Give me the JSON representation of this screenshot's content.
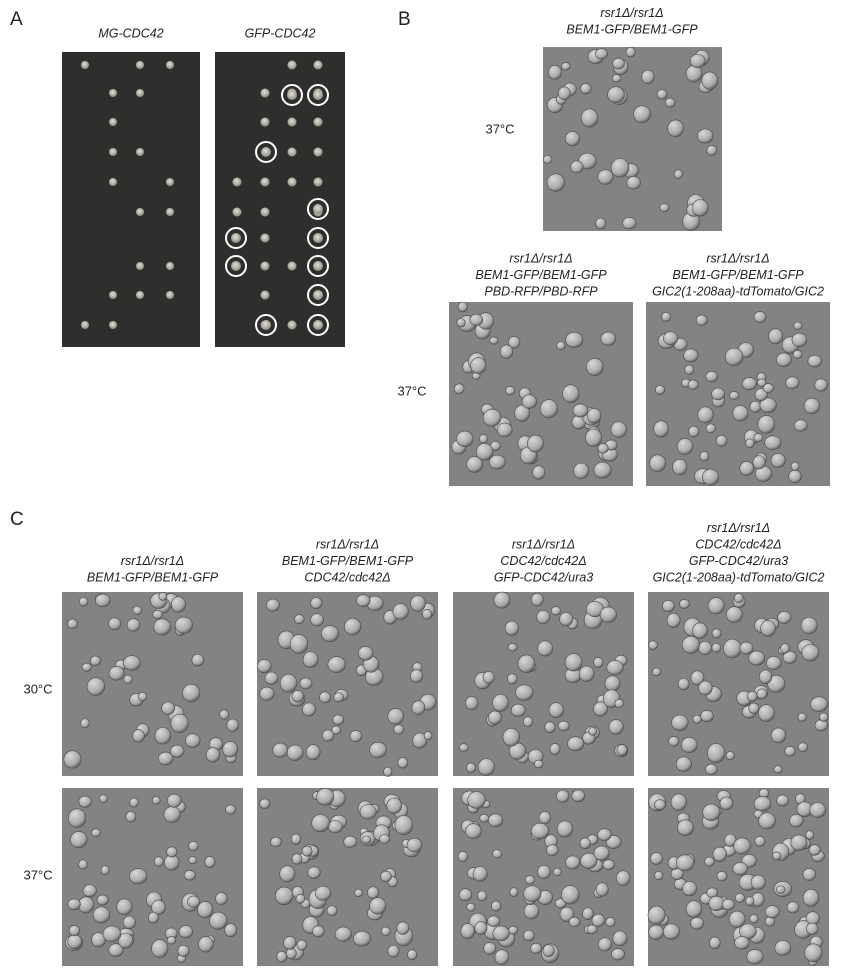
{
  "panels": [
    {
      "label": "A",
      "columns": [
        "MG-CDC42",
        "GFP-CDC42"
      ]
    },
    {
      "label": "B",
      "top": {
        "genotype": [
          "rsr1Δ/rsr1Δ",
          "BEM1-GFP/BEM1-GFP"
        ],
        "temperature": "37°C"
      },
      "bottom": {
        "genotypes": [
          [
            "rsr1Δ/rsr1Δ",
            "BEM1-GFP/BEM1-GFP",
            "PBD-RFP/PBD-RFP"
          ],
          [
            "rsr1Δ/rsr1Δ",
            "BEM1-GFP/BEM1-GFP",
            "GIC2(1-208aa)-tdTomato/GIC2"
          ]
        ],
        "temperature": "37°C"
      }
    },
    {
      "label": "C",
      "genotypes": [
        [
          "rsr1Δ/rsr1Δ",
          "BEM1-GFP/BEM1-GFP"
        ],
        [
          "rsr1Δ/rsr1Δ",
          "BEM1-GFP/BEM1-GFP",
          "CDC42/cdc42Δ"
        ],
        [
          "rsr1Δ/rsr1Δ",
          "CDC42/cdc42Δ",
          "GFP-CDC42/ura3"
        ],
        [
          "rsr1Δ/rsr1Δ",
          "CDC42/cdc42Δ",
          "GFP-CDC42/ura3",
          "GIC2(1-208aa)-tdTomato/GIC2"
        ]
      ],
      "temperatures": [
        "30°C",
        "37°C"
      ]
    }
  ]
}
